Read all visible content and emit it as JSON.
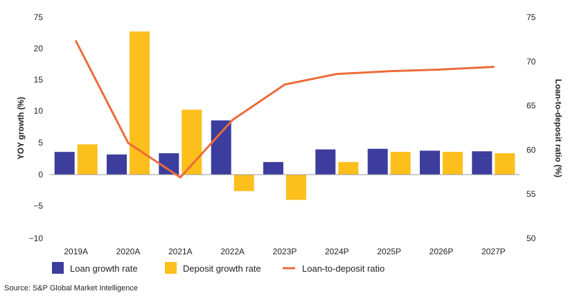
{
  "chart_data": {
    "type": "bar",
    "categories": [
      "2019A",
      "2020A",
      "2021A",
      "2022A",
      "2023P",
      "2024P",
      "2025P",
      "2026P",
      "2027P"
    ],
    "series": [
      {
        "name": "Loan growth rate",
        "kind": "bar",
        "axis": "left",
        "color": "#3d3d9e",
        "values": [
          3.6,
          3.2,
          3.4,
          8.6,
          2.0,
          4.0,
          4.1,
          3.8,
          3.7
        ]
      },
      {
        "name": "Deposit growth rate",
        "kind": "bar",
        "axis": "left",
        "color": "#fdbf1c",
        "values": [
          4.8,
          22.7,
          10.3,
          -2.6,
          -4.0,
          2.0,
          3.6,
          3.6,
          3.4
        ]
      },
      {
        "name": "Loan-to-deposit ratio",
        "kind": "line",
        "axis": "right",
        "color": "#ec6b3a",
        "values": [
          72.3,
          60.8,
          56.9,
          63.4,
          67.4,
          68.6,
          68.9,
          69.1,
          69.4
        ]
      }
    ],
    "ylabel": "YOY growth (%)",
    "y2label": "Loan-to-deposit ratio (%)",
    "ylim": [
      -10,
      75
    ],
    "y2lim": [
      50,
      75
    ],
    "yticks": [
      "75",
      "20",
      "15",
      "10",
      "5",
      "0",
      "−5",
      "−10"
    ],
    "y2ticks": [
      "75",
      "70",
      "65",
      "60",
      "55",
      "50"
    ],
    "legend": "bottom",
    "gridlines": false
  },
  "source": "Source: S&P Global Market Intelligence"
}
